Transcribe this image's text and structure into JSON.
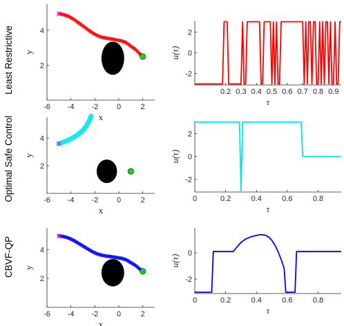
{
  "row_labels": [
    "Least Restrictive",
    "Optimal Safe Control",
    "CBVF-QP"
  ],
  "chart_data": [
    {
      "type": "scatter",
      "row": 0,
      "xlabel": "x",
      "ylabel": "y",
      "xlim": [
        -6,
        3
      ],
      "ylim": [
        0,
        5.5
      ],
      "xticks": [
        -6,
        -4,
        -2,
        0,
        2
      ],
      "yticks": [
        2,
        4
      ],
      "obstacle": {
        "cx": -0.5,
        "cy": 2.4,
        "r": 0.95,
        "color": "#000000"
      },
      "goal": {
        "x": 2.0,
        "y": 2.5,
        "color": "#22cc22"
      },
      "start": {
        "x": -5.0,
        "y": 4.95,
        "color": "#ff00ff"
      },
      "trajectory_color": "#ff0000",
      "trajectory": [
        [
          -5.0,
          4.95
        ],
        [
          -4.6,
          4.9
        ],
        [
          -4.2,
          4.8
        ],
        [
          -3.8,
          4.65
        ],
        [
          -3.4,
          4.45
        ],
        [
          -3.0,
          4.25
        ],
        [
          -2.6,
          4.05
        ],
        [
          -2.2,
          3.85
        ],
        [
          -1.8,
          3.7
        ],
        [
          -1.4,
          3.6
        ],
        [
          -1.0,
          3.55
        ],
        [
          -0.6,
          3.5
        ],
        [
          -0.2,
          3.45
        ],
        [
          0.2,
          3.4
        ],
        [
          0.6,
          3.3
        ],
        [
          1.0,
          3.1
        ],
        [
          1.4,
          2.9
        ],
        [
          1.8,
          2.62
        ],
        [
          2.0,
          2.5
        ]
      ]
    },
    {
      "type": "line",
      "row": 0,
      "xlabel": "τ",
      "ylabel": "u(τ)",
      "xlim": [
        0,
        0.95
      ],
      "ylim": [
        -3.1,
        3.1
      ],
      "xticks": [
        0.2,
        0.3,
        0.4,
        0.5,
        0.6,
        0.7,
        0.8,
        0.9
      ],
      "yticks": [
        -2,
        0,
        2
      ],
      "color": "#ff0000",
      "series": [
        {
          "x": [
            0,
            0.18,
            0.19,
            0.2,
            0.21,
            0.22,
            0.23,
            0.24,
            0.25,
            0.3,
            0.31,
            0.32,
            0.33,
            0.34,
            0.35,
            0.36,
            0.37,
            0.42,
            0.43,
            0.44,
            0.45,
            0.49,
            0.5,
            0.51,
            0.52,
            0.53,
            0.54,
            0.55,
            0.56,
            0.57,
            0.7,
            0.71,
            0.72,
            0.73,
            0.74,
            0.75,
            0.76,
            0.77,
            0.78,
            0.79,
            0.8,
            0.81,
            0.82,
            0.83,
            0.84,
            0.85,
            0.86,
            0.87,
            0.88,
            0.89,
            0.9,
            0.91,
            0.92,
            0.93,
            0.94,
            0.95
          ],
          "y": [
            -3,
            -3,
            3,
            3,
            3,
            -3,
            -3,
            -3,
            -3,
            -3,
            3,
            -3,
            -3,
            3,
            3,
            3,
            3,
            3,
            -3,
            -3,
            3,
            3,
            -3,
            3,
            -3,
            3,
            -3,
            -3,
            3,
            3,
            3,
            -3,
            3,
            -3,
            3,
            3,
            -3,
            3,
            3,
            -3,
            -3,
            3,
            -3,
            3,
            -3,
            3,
            3,
            -3,
            3,
            -3,
            -3,
            3,
            -3,
            -3,
            3,
            3
          ]
        }
      ]
    },
    {
      "type": "scatter",
      "row": 1,
      "xlabel": "x",
      "ylabel": "y",
      "xlim": [
        -6,
        3
      ],
      "ylim": [
        0,
        5.5
      ],
      "xticks": [
        -6,
        -4,
        -2,
        0,
        2
      ],
      "yticks": [
        2,
        4
      ],
      "obstacle": {
        "cx": -1.0,
        "cy": 1.6,
        "r": 0.85,
        "color": "#000000"
      },
      "goal": {
        "x": 1.0,
        "y": 1.6,
        "color": "#22cc22"
      },
      "start": {
        "x": -5.0,
        "y": 3.6,
        "color": "#ff00ff"
      },
      "trajectory_color": "#00e5ee",
      "trajectory": [
        [
          -5.0,
          3.6
        ],
        [
          -4.5,
          3.75
        ],
        [
          -4.0,
          3.95
        ],
        [
          -3.5,
          4.2
        ],
        [
          -3.0,
          4.55
        ],
        [
          -2.7,
          4.9
        ],
        [
          -2.45,
          5.3
        ],
        [
          -2.3,
          5.6
        ]
      ]
    },
    {
      "type": "line",
      "row": 1,
      "xlabel": "τ",
      "ylabel": "u(τ)",
      "xlim": [
        0,
        0.95
      ],
      "ylim": [
        -3.1,
        3.1
      ],
      "xticks": [
        0,
        0.2,
        0.4,
        0.6,
        0.8
      ],
      "yticks": [
        -2,
        0,
        2
      ],
      "color": "#00e5ee",
      "series": [
        {
          "x": [
            0,
            0.29,
            0.3,
            0.31,
            0.32,
            0.69,
            0.7,
            0.95
          ],
          "y": [
            3,
            3,
            -3,
            3,
            3,
            3,
            0,
            0
          ]
        }
      ]
    },
    {
      "type": "scatter",
      "row": 2,
      "xlabel": "x",
      "ylabel": "y",
      "xlim": [
        -6,
        3
      ],
      "ylim": [
        0,
        5.5
      ],
      "xticks": [
        -6,
        -4,
        -2,
        0,
        2
      ],
      "yticks": [
        2,
        4
      ],
      "obstacle": {
        "cx": -0.5,
        "cy": 2.4,
        "r": 0.95,
        "color": "#000000"
      },
      "goal": {
        "x": 2.0,
        "y": 2.5,
        "color": "#22cc22"
      },
      "start": {
        "x": -5.0,
        "y": 4.95,
        "color": "#ff00ff"
      },
      "trajectory_color": "#0000ff",
      "trajectory": [
        [
          -5.0,
          4.95
        ],
        [
          -4.6,
          4.9
        ],
        [
          -4.2,
          4.8
        ],
        [
          -3.8,
          4.65
        ],
        [
          -3.4,
          4.45
        ],
        [
          -3.0,
          4.25
        ],
        [
          -2.6,
          4.05
        ],
        [
          -2.2,
          3.85
        ],
        [
          -1.8,
          3.7
        ],
        [
          -1.4,
          3.6
        ],
        [
          -1.0,
          3.55
        ],
        [
          -0.6,
          3.5
        ],
        [
          -0.2,
          3.45
        ],
        [
          0.2,
          3.4
        ],
        [
          0.6,
          3.3
        ],
        [
          1.0,
          3.1
        ],
        [
          1.4,
          2.9
        ],
        [
          1.8,
          2.62
        ],
        [
          2.0,
          2.5
        ]
      ]
    },
    {
      "type": "line",
      "row": 2,
      "xlabel": "τ",
      "ylabel": "u(τ)",
      "xlim": [
        0,
        0.95
      ],
      "ylim": [
        -3.1,
        1.9
      ],
      "xticks": [
        0,
        0.2,
        0.4,
        0.6,
        0.8
      ],
      "yticks": [
        -2,
        0
      ],
      "color": "#0000ff",
      "series": [
        {
          "x": [
            0,
            0.11,
            0.12,
            0.25,
            0.27,
            0.3,
            0.33,
            0.36,
            0.39,
            0.42,
            0.44,
            0.46,
            0.48,
            0.5,
            0.52,
            0.54,
            0.56,
            0.58,
            0.59,
            0.65,
            0.66,
            0.95
          ],
          "y": [
            -3,
            -3,
            0.1,
            0.1,
            0.4,
            0.8,
            1.05,
            1.2,
            1.3,
            1.38,
            1.38,
            1.33,
            1.2,
            0.95,
            0.6,
            0.1,
            -0.5,
            -1.2,
            -3,
            -3,
            0.1,
            0.1
          ]
        }
      ]
    }
  ]
}
